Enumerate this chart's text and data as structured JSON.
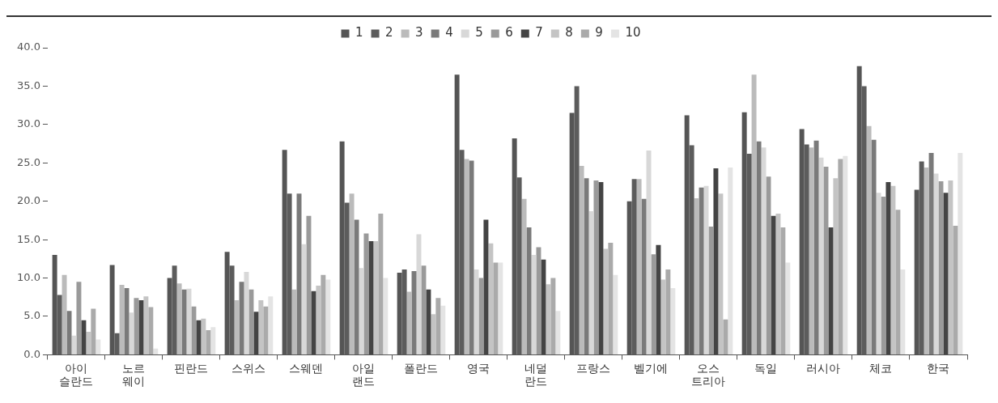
{
  "chart_data": {
    "type": "bar",
    "categories": [
      "아이\n슬란드",
      "노르\n웨이",
      "핀란드",
      "스위스",
      "스웨덴",
      "아일\n랜드",
      "폴란드",
      "영국",
      "네덜\n란드",
      "프랑스",
      "벨기에",
      "오스\n트리아",
      "독일",
      "러시아",
      "체코",
      "한국"
    ],
    "ylim": [
      0,
      40
    ],
    "yticks": [
      {
        "value": 0,
        "label": "0.0"
      },
      {
        "value": 5,
        "label": "5.0"
      },
      {
        "value": 10,
        "label": "10.0"
      },
      {
        "value": 15,
        "label": "15.0"
      },
      {
        "value": 20,
        "label": "20.0"
      },
      {
        "value": 25,
        "label": "25.0"
      },
      {
        "value": 30,
        "label": "30.0"
      },
      {
        "value": 35,
        "label": "35.0"
      },
      {
        "value": 40,
        "label": "40.0"
      }
    ],
    "grid": false,
    "legend": "top",
    "series": [
      {
        "name": "1",
        "color": "#555555",
        "values": [
          13.0,
          11.7,
          10.0,
          13.4,
          26.7,
          27.8,
          10.7,
          36.5,
          28.2,
          31.5,
          20.0,
          31.2,
          31.6,
          29.4,
          37.6,
          21.5
        ]
      },
      {
        "name": "2",
        "color": "#5c5c5c",
        "values": [
          7.8,
          2.8,
          11.6,
          11.6,
          21.0,
          19.8,
          11.1,
          26.7,
          23.1,
          35.0,
          22.9,
          27.3,
          26.2,
          27.4,
          35.0,
          25.2
        ]
      },
      {
        "name": "3",
        "color": "#bbbbbb",
        "values": [
          10.4,
          9.1,
          9.3,
          7.1,
          8.5,
          21.0,
          8.2,
          25.5,
          20.3,
          24.6,
          22.9,
          20.4,
          36.5,
          27.0,
          29.8,
          24.4
        ]
      },
      {
        "name": "4",
        "color": "#7a7a7a",
        "values": [
          5.7,
          8.7,
          8.5,
          9.5,
          21.0,
          17.6,
          10.9,
          25.3,
          16.6,
          23.0,
          20.3,
          21.8,
          27.8,
          27.9,
          28.0,
          26.3
        ]
      },
      {
        "name": "5",
        "color": "#d8d8d8",
        "values": [
          2.5,
          5.5,
          8.6,
          10.8,
          14.4,
          11.3,
          15.7,
          11.1,
          13.0,
          18.7,
          26.6,
          22.0,
          27.0,
          25.7,
          21.1,
          23.6
        ]
      },
      {
        "name": "6",
        "color": "#9a9a9a",
        "values": [
          9.5,
          7.4,
          6.3,
          8.5,
          18.1,
          15.8,
          11.6,
          10.0,
          14.0,
          22.7,
          13.1,
          16.7,
          23.2,
          24.5,
          20.6,
          22.6
        ]
      },
      {
        "name": "7",
        "color": "#444444",
        "values": [
          4.5,
          7.1,
          4.5,
          5.6,
          8.3,
          14.8,
          8.5,
          17.6,
          12.4,
          22.5,
          14.3,
          24.3,
          18.1,
          16.6,
          22.5,
          21.1
        ]
      },
      {
        "name": "8",
        "color": "#c4c4c4",
        "values": [
          3.0,
          7.6,
          4.7,
          7.1,
          9.0,
          14.8,
          5.3,
          14.5,
          9.2,
          13.8,
          9.8,
          21.0,
          18.4,
          23.0,
          22.0,
          22.7
        ]
      },
      {
        "name": "9",
        "color": "#aaaaaa",
        "values": [
          6.0,
          6.2,
          3.2,
          6.3,
          10.4,
          18.4,
          7.4,
          12.0,
          10.0,
          14.6,
          11.1,
          4.6,
          16.6,
          25.5,
          18.9,
          16.8
        ]
      },
      {
        "name": "10",
        "color": "#e4e4e4",
        "values": [
          2.0,
          0.8,
          3.6,
          7.6,
          9.8,
          10.0,
          6.4,
          12.0,
          5.7,
          10.4,
          8.7,
          24.4,
          12.0,
          25.9,
          11.1,
          26.3
        ]
      }
    ]
  }
}
